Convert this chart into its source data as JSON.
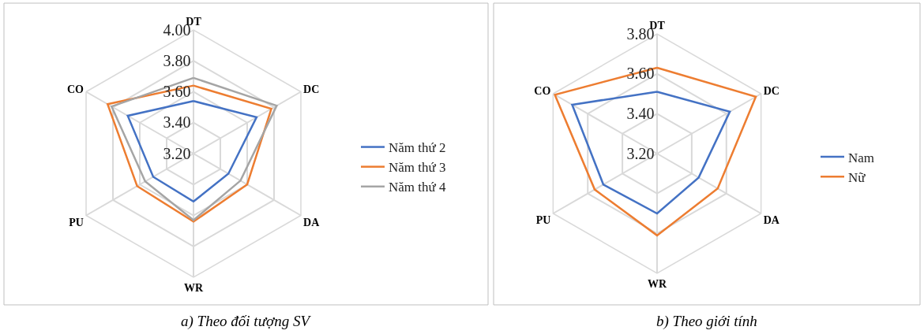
{
  "chart_data": [
    {
      "type": "radar",
      "categories": [
        "DT",
        "DC",
        "DA",
        "WR",
        "PU",
        "CO"
      ],
      "ylim": [
        3.2,
        4.0
      ],
      "yticks": [
        {
          "value": 3.2,
          "label": "3.20"
        },
        {
          "value": 3.4,
          "label": "3.40"
        },
        {
          "value": 3.6,
          "label": "3.60"
        },
        {
          "value": 3.8,
          "label": "3.80"
        },
        {
          "value": 4.0,
          "label": "4.00"
        }
      ],
      "grid": true,
      "legend": "right",
      "annotations": [
        "a) Theo đối tượng SV"
      ],
      "series": [
        {
          "name": "Năm thứ 2",
          "color": "#4472c4",
          "values": [
            3.54,
            3.67,
            3.46,
            3.51,
            3.5,
            3.69
          ]
        },
        {
          "name": "Năm thứ 3",
          "color": "#ed7d31",
          "values": [
            3.64,
            3.78,
            3.6,
            3.64,
            3.62,
            3.84
          ]
        },
        {
          "name": "Năm thứ 4",
          "color": "#a5a5a5",
          "values": [
            3.69,
            3.82,
            3.55,
            3.63,
            3.56,
            3.81
          ]
        }
      ]
    },
    {
      "type": "radar",
      "categories": [
        "DT",
        "DC",
        "DA",
        "WR",
        "PU",
        "CO"
      ],
      "ylim": [
        3.2,
        3.8
      ],
      "yticks": [
        {
          "value": 3.2,
          "label": "3.20"
        },
        {
          "value": 3.4,
          "label": "3.40"
        },
        {
          "value": 3.6,
          "label": "3.60"
        },
        {
          "value": 3.8,
          "label": "3.80"
        }
      ],
      "grid": true,
      "legend": "right",
      "annotations": [
        "b) Theo giới tính"
      ],
      "series": [
        {
          "name": "Nam",
          "color": "#4472c4",
          "values": [
            3.51,
            3.62,
            3.44,
            3.5,
            3.51,
            3.69
          ]
        },
        {
          "name": "Nữ",
          "color": "#ed7d31",
          "values": [
            3.63,
            3.77,
            3.55,
            3.61,
            3.56,
            3.79
          ]
        }
      ]
    }
  ]
}
